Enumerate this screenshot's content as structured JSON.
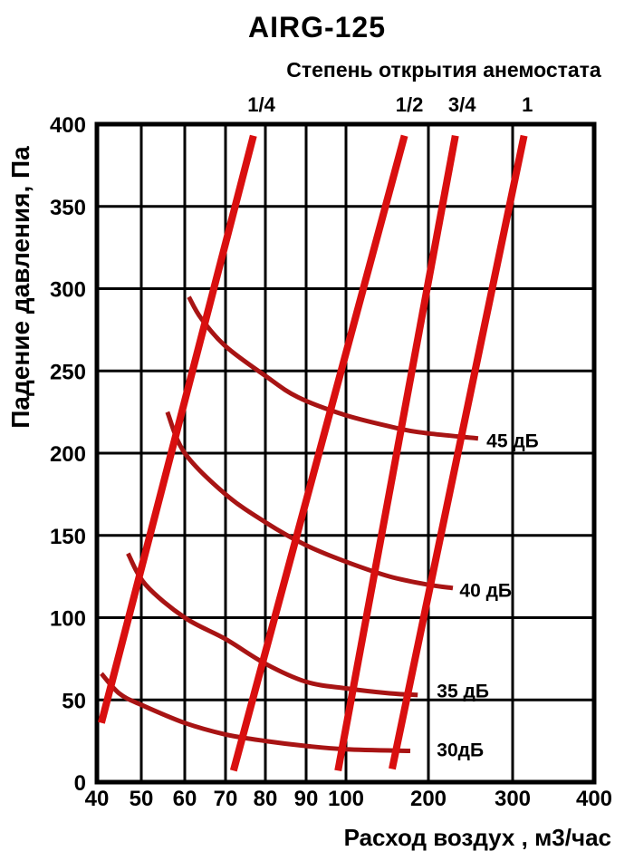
{
  "page_title": "AIRG-125",
  "chart_data": {
    "type": "line",
    "title": "AIRG-125",
    "x_axis": {
      "label": "Расход воздух , м3/час",
      "scale": "segmented (equal spacing 40-100 by 10, 100-400 by 100)",
      "ticks": [
        40,
        50,
        60,
        70,
        80,
        90,
        100,
        200,
        300,
        400
      ],
      "range": [
        40,
        400
      ]
    },
    "y_axis": {
      "label": "Падение давления, Па",
      "ticks": [
        0,
        50,
        100,
        150,
        200,
        250,
        300,
        350,
        400
      ],
      "range": [
        0,
        400
      ]
    },
    "top_axis": {
      "label": "Степень открытия анемостата",
      "ticks": [
        {
          "label": "1/4",
          "flow": 79
        },
        {
          "label": "1/2",
          "flow": 177
        },
        {
          "label": "3/4",
          "flow": 240
        },
        {
          "label": "1",
          "flow": 318
        }
      ]
    },
    "opening_lines": [
      {
        "name": "1/4",
        "points": [
          [
            41,
            36
          ],
          [
            77,
            393
          ]
        ]
      },
      {
        "name": "1/2",
        "points": [
          [
            72,
            7
          ],
          [
            171,
            393
          ]
        ]
      },
      {
        "name": "3/4",
        "points": [
          [
            98,
            7
          ],
          [
            232,
            393
          ]
        ]
      },
      {
        "name": "1",
        "points": [
          [
            156,
            8
          ],
          [
            314,
            393
          ]
        ]
      }
    ],
    "noise_curves": [
      {
        "label": "45 дБ",
        "label_anchor": [
          269,
          208
        ],
        "points": [
          [
            61,
            295
          ],
          [
            64,
            282
          ],
          [
            70,
            265
          ],
          [
            80,
            247
          ],
          [
            88,
            234
          ],
          [
            100,
            223
          ],
          [
            164,
            215
          ],
          [
            200,
            212
          ],
          [
            259,
            209
          ]
        ]
      },
      {
        "label": "40 дБ",
        "label_anchor": [
          237,
          117
        ],
        "points": [
          [
            56,
            225
          ],
          [
            60,
            200
          ],
          [
            70,
            175
          ],
          [
            80,
            158
          ],
          [
            90,
            144
          ],
          [
            100,
            134
          ],
          [
            153,
            125
          ],
          [
            200,
            120
          ],
          [
            229,
            118
          ]
        ]
      },
      {
        "label": "35 дБ",
        "label_anchor": [
          210,
          56
        ],
        "points": [
          [
            47,
            139
          ],
          [
            51,
            120
          ],
          [
            60,
            100
          ],
          [
            70,
            87
          ],
          [
            80,
            72
          ],
          [
            90,
            61
          ],
          [
            100,
            57
          ],
          [
            153,
            54
          ],
          [
            187,
            53
          ]
        ]
      },
      {
        "label": "30дБ",
        "label_anchor": [
          210,
          20
        ],
        "points": [
          [
            41,
            66
          ],
          [
            45,
            54
          ],
          [
            50,
            47
          ],
          [
            60,
            36
          ],
          [
            70,
            29
          ],
          [
            80,
            25
          ],
          [
            90,
            22
          ],
          [
            100,
            20
          ],
          [
            178,
            19
          ]
        ]
      }
    ],
    "colors": {
      "opening_line_red": "#d90f0f",
      "noise_curve_red": "#a81414",
      "grid": "#000000",
      "background": "#ffffff"
    }
  }
}
